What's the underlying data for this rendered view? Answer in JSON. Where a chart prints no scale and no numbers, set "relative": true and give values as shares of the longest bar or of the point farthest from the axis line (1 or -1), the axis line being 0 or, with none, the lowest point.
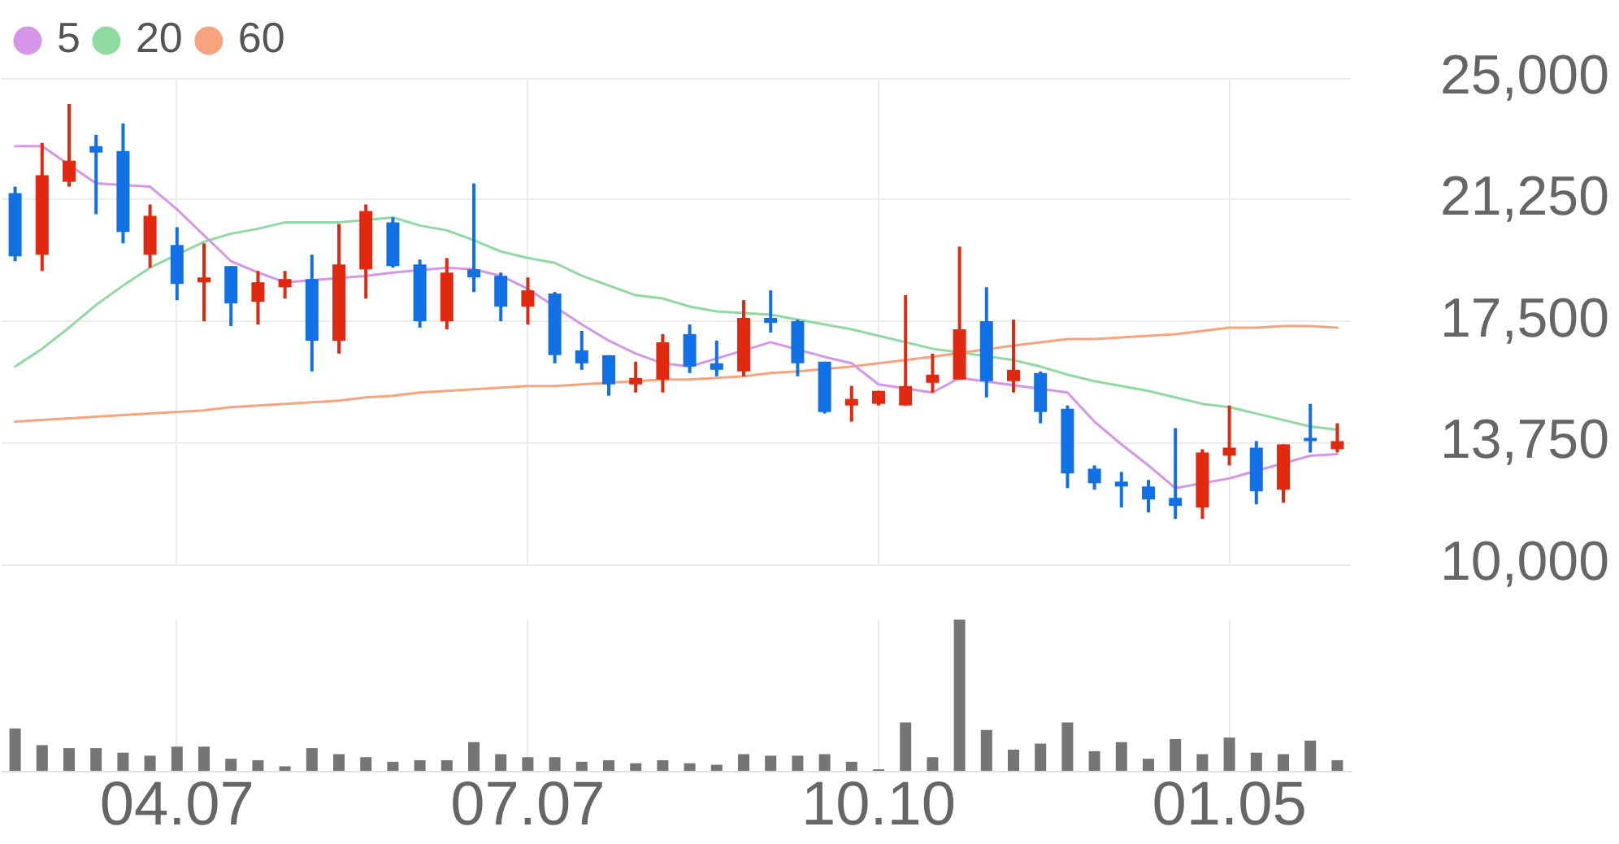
{
  "chart_data": [
    {
      "type": "candlestick",
      "categories": [
        null,
        null,
        null,
        null,
        null,
        null,
        "04.07",
        null,
        null,
        null,
        null,
        null,
        null,
        null,
        null,
        null,
        null,
        null,
        null,
        "07.07",
        null,
        null,
        null,
        null,
        null,
        null,
        null,
        null,
        null,
        null,
        null,
        null,
        "10.10",
        null,
        null,
        null,
        null,
        null,
        null,
        null,
        null,
        null,
        null,
        null,
        null,
        "01.05",
        null,
        null,
        null,
        null
      ],
      "ohlc": [
        [
          21450,
          21650,
          19350,
          19500
        ],
        [
          19550,
          23000,
          19050,
          22000
        ],
        [
          21800,
          24200,
          21650,
          22450
        ],
        [
          22900,
          23250,
          20800,
          22700
        ],
        [
          22750,
          23600,
          19900,
          20250
        ],
        [
          19550,
          21100,
          19150,
          20750
        ],
        [
          19850,
          20400,
          18150,
          18650
        ],
        [
          18700,
          19900,
          17500,
          18850
        ],
        [
          19200,
          19200,
          17350,
          18050
        ],
        [
          18100,
          19050,
          17400,
          18700
        ],
        [
          18550,
          19050,
          18200,
          18800
        ],
        [
          18800,
          19550,
          15950,
          16900
        ],
        [
          16900,
          20500,
          16500,
          19250
        ],
        [
          19100,
          21100,
          18200,
          20900
        ],
        [
          20550,
          20700,
          19150,
          19200
        ],
        [
          19250,
          19400,
          17300,
          17500
        ],
        [
          17500,
          19450,
          17250,
          19000
        ],
        [
          19100,
          21750,
          18400,
          18850
        ],
        [
          18900,
          19000,
          17500,
          17950
        ],
        [
          17950,
          18850,
          17400,
          18450
        ],
        [
          18350,
          18400,
          16200,
          16450
        ],
        [
          16600,
          17200,
          16000,
          16200
        ],
        [
          16450,
          16450,
          15200,
          15550
        ],
        [
          15550,
          16250,
          15300,
          15750
        ],
        [
          15700,
          17100,
          15300,
          16850
        ],
        [
          17100,
          17400,
          15900,
          16100
        ],
        [
          16200,
          16900,
          15800,
          16000
        ],
        [
          15950,
          18150,
          15800,
          17600
        ],
        [
          17600,
          18450,
          17150,
          17450
        ],
        [
          17500,
          17550,
          15800,
          16200
        ],
        [
          16250,
          16250,
          14650,
          14700
        ],
        [
          14900,
          15500,
          14400,
          15100
        ],
        [
          14950,
          15350,
          14900,
          15350
        ],
        [
          14900,
          18300,
          14900,
          15500
        ],
        [
          15600,
          16500,
          15300,
          15850
        ],
        [
          15700,
          19800,
          15700,
          17250
        ],
        [
          17500,
          18550,
          15150,
          15650
        ],
        [
          15650,
          17550,
          15300,
          16000
        ],
        [
          15900,
          15950,
          14350,
          14700
        ],
        [
          14800,
          14900,
          12350,
          12800
        ],
        [
          12950,
          13050,
          12300,
          12500
        ],
        [
          12550,
          12850,
          11750,
          12400
        ],
        [
          12400,
          12600,
          11600,
          12000
        ],
        [
          12050,
          14200,
          11400,
          11800
        ],
        [
          11750,
          13550,
          11400,
          13450
        ],
        [
          13350,
          14900,
          13050,
          13600
        ],
        [
          13600,
          13800,
          11850,
          12250
        ],
        [
          12300,
          13700,
          11900,
          13700
        ],
        [
          13900,
          14950,
          13450,
          13800
        ],
        [
          13550,
          14350,
          13450,
          13800
        ]
      ],
      "colors": [
        "#1170e6",
        "#e2280e",
        "#e2280e",
        "#1170e6",
        "#1170e6",
        "#e2280e",
        "#1170e6",
        "#e2280e",
        "#1170e6",
        "#e2280e",
        "#e2280e",
        "#1170e6",
        "#e2280e",
        "#e2280e",
        "#1170e6",
        "#1170e6",
        "#e2280e",
        "#1170e6",
        "#1170e6",
        "#e2280e",
        "#1170e6",
        "#1170e6",
        "#1170e6",
        "#e2280e",
        "#e2280e",
        "#1170e6",
        "#1170e6",
        "#e2280e",
        "#1170e6",
        "#1170e6",
        "#1170e6",
        "#e2280e",
        "#e2280e",
        "#e2280e",
        "#e2280e",
        "#e2280e",
        "#1170e6",
        "#e2280e",
        "#1170e6",
        "#1170e6",
        "#1170e6",
        "#1170e6",
        "#1170e6",
        "#1170e6",
        "#e2280e",
        "#e2280e",
        "#1170e6",
        "#e2280e",
        "#1170e6",
        "#e2280e"
      ],
      "series": [
        {
          "name": "5",
          "type": "line",
          "color": "#d596ea",
          "values": [
            22900,
            22900,
            null,
            21750,
            null,
            21650,
            20950,
            20150,
            19350,
            19000,
            18700,
            null,
            null,
            18900,
            19000,
            null,
            19150,
            19100,
            18900,
            18500,
            null,
            17400,
            16900,
            16500,
            16200,
            16100,
            null,
            null,
            16850,
            null,
            16400,
            16200,
            15550,
            null,
            15300,
            15750,
            null,
            null,
            null,
            15300,
            14400,
            13700,
            13050,
            12350,
            null,
            12650,
            null,
            null,
            13350,
            13400
          ]
        },
        {
          "name": "20",
          "type": "line",
          "color": "#8fd9a3",
          "values": [
            16100,
            16650,
            17300,
            18000,
            18600,
            19150,
            null,
            19950,
            20200,
            20350,
            20550,
            20550,
            20550,
            null,
            20700,
            20450,
            20300,
            20000,
            19650,
            19450,
            19300,
            18900,
            18600,
            18300,
            18200,
            17950,
            17800,
            17750,
            17700,
            17550,
            17400,
            17250,
            17050,
            16850,
            16650,
            null,
            null,
            16300,
            16100,
            15850,
            15650,
            15500,
            15350,
            15150,
            14950,
            14850,
            14650,
            14450,
            14250,
            14150
          ]
        },
        {
          "name": "60",
          "type": "line",
          "color": "#f7a47e",
          "values": [
            14400,
            14450,
            14500,
            14550,
            14600,
            14650,
            14700,
            14750,
            14850,
            14900,
            14950,
            15000,
            15050,
            15150,
            15200,
            15300,
            15350,
            15400,
            15450,
            15500,
            15500,
            15550,
            null,
            15650,
            15700,
            15700,
            15750,
            15800,
            15900,
            15950,
            null,
            16100,
            16200,
            16300,
            16400,
            null,
            null,
            16750,
            16850,
            16950,
            16950,
            17000,
            17050,
            17100,
            17200,
            17300,
            17300,
            17350,
            17350,
            17300
          ]
        }
      ],
      "ylim": [
        10000,
        25000
      ],
      "yticks": [
        {
          "value": 10000,
          "label": "10,000"
        },
        {
          "value": 13750,
          "label": "13,750"
        },
        {
          "value": 17500,
          "label": "17,500"
        },
        {
          "value": 21250,
          "label": "21,250"
        },
        {
          "value": 25000,
          "label": "25,000"
        }
      ],
      "grid": true,
      "legend": "top left",
      "tick_labels": "y",
      "marker": "none"
    },
    {
      "type": "bar",
      "relative": true,
      "categories": [
        null,
        null,
        null,
        null,
        null,
        null,
        "04.07",
        null,
        null,
        null,
        null,
        null,
        null,
        null,
        null,
        null,
        null,
        null,
        null,
        "07.07",
        null,
        null,
        null,
        null,
        null,
        null,
        null,
        null,
        null,
        null,
        null,
        null,
        "10.10",
        null,
        null,
        null,
        null,
        null,
        null,
        null,
        null,
        null,
        null,
        null,
        null,
        "01.05",
        null,
        null,
        null,
        null
      ],
      "values": [
        0.28,
        0.17,
        0.15,
        0.15,
        0.12,
        0.1,
        0.16,
        0.16,
        0.08,
        0.07,
        0.03,
        0.15,
        0.11,
        0.09,
        0.06,
        0.07,
        0.07,
        0.19,
        0.11,
        0.09,
        0.09,
        0.06,
        0.07,
        0.05,
        0.07,
        0.05,
        0.04,
        0.11,
        0.1,
        0.1,
        0.11,
        0.06,
        0.01,
        0.32,
        0.09,
        1,
        0.27,
        0.14,
        0.18,
        0.32,
        0.13,
        0.19,
        0.08,
        0.21,
        0.11,
        0.22,
        0.12,
        0.11,
        0.2,
        0.07
      ],
      "color": "#757575",
      "grid": "x",
      "tick_labels": "x"
    }
  ]
}
